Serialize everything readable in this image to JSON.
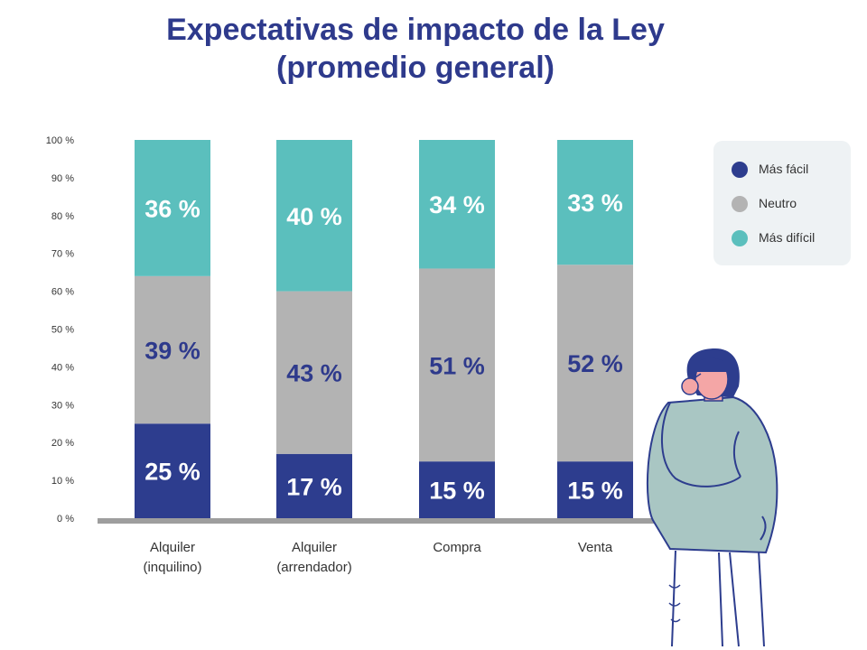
{
  "chart_data": {
    "type": "bar",
    "stacked": true,
    "title": [
      "Expectativas de impacto de la Ley",
      "(promedio general)"
    ],
    "categories": [
      [
        "Alquiler",
        "(inquilino)"
      ],
      [
        "Alquiler",
        "(arrendador)"
      ],
      [
        "Compra"
      ],
      [
        "Venta"
      ]
    ],
    "series": [
      {
        "name": "Más fácil",
        "color": "#2d3d8e",
        "values": [
          25,
          17,
          15,
          15
        ],
        "labels": [
          "25 %",
          "17 %",
          "15 %",
          "15 %"
        ]
      },
      {
        "name": "Neutro",
        "color": "#b3b3b3",
        "values": [
          39,
          43,
          51,
          52
        ],
        "labels": [
          "39 %",
          "43 %",
          "51 %",
          "52 %"
        ]
      },
      {
        "name": "Más difícil",
        "color": "#5bbfbd",
        "values": [
          36,
          40,
          34,
          33
        ],
        "labels": [
          "36 %",
          "40 %",
          "34 %",
          "33 %"
        ]
      }
    ],
    "yticks": [
      "0 %",
      "10 %",
      "20 %",
      "30 %",
      "40 %",
      "50 %",
      "60 %",
      "70 %",
      "80 %",
      "90 %",
      "100 %"
    ],
    "ylim": [
      0,
      100
    ],
    "legend_position": "top-right",
    "grid": false
  },
  "colors": {
    "title": "#2e3a8c",
    "label_on_gray": "#2e3a8c",
    "label_on_color": "#ffffff",
    "axis": "#9e9e9e"
  },
  "illustration": "woman-thinking-icon"
}
